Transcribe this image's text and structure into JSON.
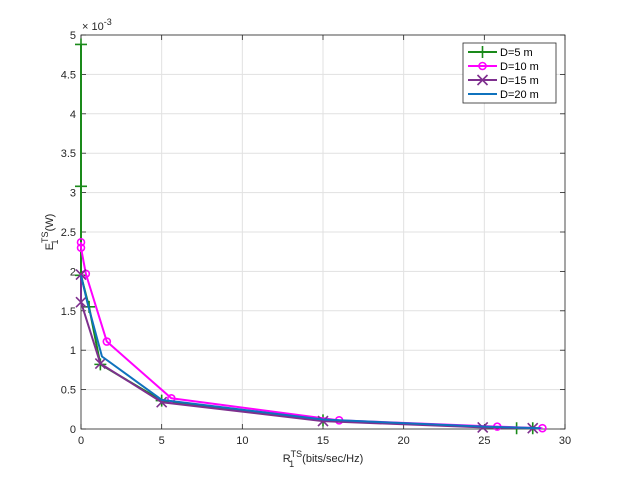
{
  "chart_data": {
    "type": "line",
    "title": "",
    "xlabel": {
      "base": "R",
      "sub": "1",
      "sup": "TS",
      "unit": "(bits/sec/Hz)"
    },
    "ylabel": {
      "base": "E",
      "sub": "1",
      "sup": "TS",
      "unit": "(W)"
    },
    "y_multiplier": {
      "base": "× 10",
      "exp": "-3"
    },
    "xlim": [
      0,
      30
    ],
    "ylim": [
      0,
      5
    ],
    "x_ticks": [
      0,
      5,
      10,
      15,
      20,
      25,
      30
    ],
    "y_ticks": [
      0,
      0.5,
      1,
      1.5,
      2,
      2.5,
      3,
      3.5,
      4,
      4.5,
      5
    ],
    "grid": true,
    "legend_position": "top-right",
    "series": [
      {
        "name": "D=5 m",
        "color": "#1a8a1a",
        "marker": "plus",
        "x": [
          0,
          0,
          0,
          0.5,
          1.2,
          5,
          15,
          27,
          28
        ],
        "y": [
          4.88,
          3.08,
          1.95,
          1.55,
          0.82,
          0.36,
          0.11,
          0.01,
          0.01
        ]
      },
      {
        "name": "D=10 m",
        "color": "#ff00ff",
        "marker": "circle",
        "x": [
          0,
          0,
          0.3,
          1.6,
          5.6,
          16,
          25.8,
          28.6
        ],
        "y": [
          2.37,
          2.3,
          1.97,
          1.11,
          0.39,
          0.11,
          0.03,
          0.01
        ]
      },
      {
        "name": "D=15 m",
        "color": "#7e2f8e",
        "marker": "x",
        "x": [
          0,
          0,
          1.2,
          5,
          15,
          24.9,
          28
        ],
        "y": [
          1.96,
          1.61,
          0.83,
          0.34,
          0.1,
          0.02,
          0.01
        ]
      },
      {
        "name": "D=20 m",
        "color": "#0f72bd",
        "marker": "none",
        "x": [
          0,
          0.4,
          1.3,
          5,
          15,
          25,
          28.5
        ],
        "y": [
          1.95,
          1.6,
          0.92,
          0.37,
          0.12,
          0.03,
          0.01
        ]
      }
    ]
  }
}
